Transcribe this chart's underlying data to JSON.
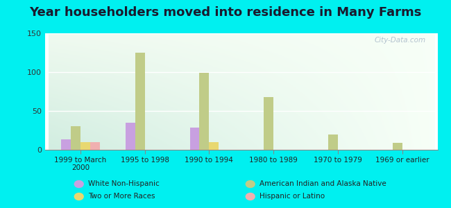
{
  "title": "Year householders moved into residence in Many Farms",
  "categories": [
    "1999 to March\n2000",
    "1995 to 1998",
    "1990 to 1994",
    "1980 to 1989",
    "1970 to 1979",
    "1969 or earlier"
  ],
  "series": {
    "White Non-Hispanic": [
      13,
      35,
      29,
      0,
      0,
      0
    ],
    "American Indian and Alaska Native": [
      30,
      125,
      99,
      68,
      20,
      9
    ],
    "Two or More Races": [
      10,
      0,
      10,
      0,
      0,
      0
    ],
    "Hispanic or Latino": [
      10,
      0,
      0,
      0,
      0,
      0
    ]
  },
  "colors": {
    "White Non-Hispanic": "#c8a0e0",
    "American Indian and Alaska Native": "#c0cc88",
    "Two or More Races": "#e8d870",
    "Hispanic or Latino": "#f0b0b0"
  },
  "ylim": [
    0,
    150
  ],
  "yticks": [
    0,
    50,
    100,
    150
  ],
  "background_color": "#00f0f0",
  "watermark": "City-Data.com",
  "bar_width": 0.15,
  "legend_fontsize": 7.5,
  "title_fontsize": 13
}
